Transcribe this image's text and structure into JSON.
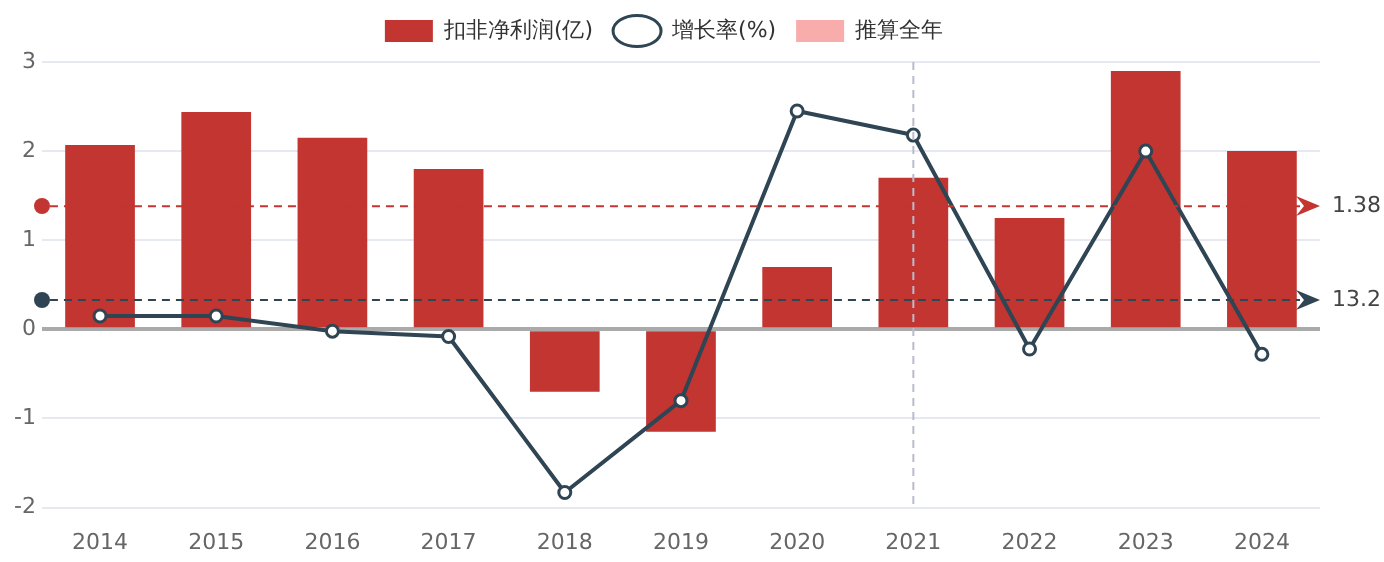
{
  "chart_data": {
    "type": "bar",
    "categories": [
      "2014",
      "2015",
      "2016",
      "2017",
      "2018",
      "2019",
      "2020",
      "2021",
      "2022",
      "2023",
      "2024"
    ],
    "series": [
      {
        "name": "扣非净利润(亿)",
        "color": "#c23531",
        "values": [
          2.07,
          2.44,
          2.15,
          1.8,
          -0.7,
          -1.15,
          0.7,
          1.7,
          1.25,
          2.9,
          2.0
        ]
      },
      {
        "name": "增长率(%)",
        "type": "line",
        "color": "#2f4554",
        "marker": "circle",
        "values": [
          0.15,
          0.15,
          -0.02,
          -0.08,
          -1.83,
          -0.8,
          2.45,
          2.18,
          -0.22,
          2.0,
          -0.28
        ]
      },
      {
        "name": "推算全年",
        "color": "#f9acac",
        "values": [
          null,
          null,
          null,
          null,
          null,
          null,
          null,
          null,
          null,
          null,
          null
        ]
      }
    ],
    "annotations": [
      "13.2"
    ],
    "ylim": [
      -2,
      3
    ],
    "yticks": [
      -2,
      -1,
      0,
      1,
      2,
      3
    ],
    "grid": "y",
    "legend": "top",
    "ref_lines": [
      {
        "axis": "y",
        "value": 1.38,
        "label": "1.38",
        "color": "#c23531",
        "line_style": "dashed"
      },
      {
        "axis": "y",
        "value": 0.33,
        "color": "#2f4554",
        "line_style": "dashed"
      },
      {
        "axis": "x",
        "value": "2021",
        "color": "#b8bccc",
        "line_style": "dashed"
      }
    ]
  }
}
